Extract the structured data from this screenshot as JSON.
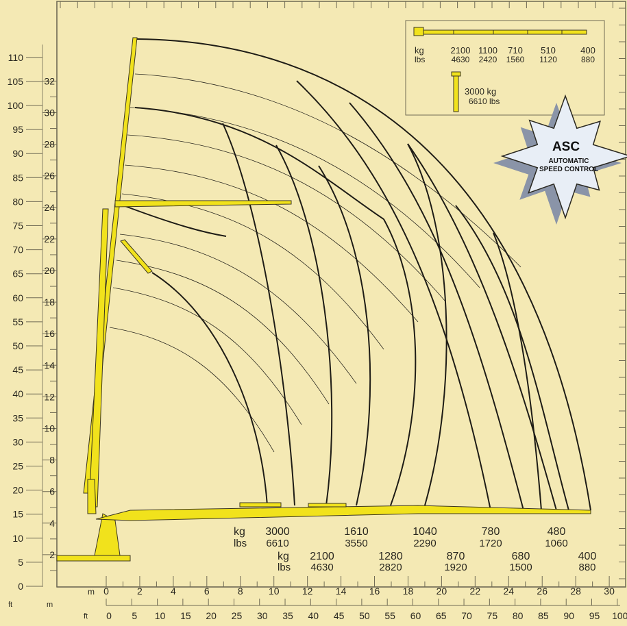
{
  "colors": {
    "background": "#f4e9b4",
    "frame": "#6f6a54",
    "curve": "#1e1c16",
    "boom": "#f1e21c",
    "boom_outline": "#3a3520",
    "badge": "#e8eef6",
    "badge_shadow": "#8a94a8",
    "text": "#2a2820"
  },
  "left_axis": {
    "ft_labels": [
      "0",
      "5",
      "10",
      "15",
      "20",
      "25",
      "30",
      "35",
      "40",
      "45",
      "50",
      "55",
      "60",
      "65",
      "70",
      "75",
      "80",
      "85",
      "90",
      "95",
      "100",
      "105",
      "110"
    ],
    "m_labels": [
      "2",
      "4",
      "6",
      "8",
      "10",
      "12",
      "14",
      "16",
      "18",
      "20",
      "22",
      "24",
      "26",
      "28",
      "30",
      "32"
    ],
    "unit_ft": "ft",
    "unit_m": "m"
  },
  "bottom_axis": {
    "m_labels": [
      "0",
      "2",
      "4",
      "6",
      "8",
      "10",
      "12",
      "14",
      "16",
      "18",
      "20",
      "22",
      "24",
      "26",
      "28",
      "30"
    ],
    "ft_labels": [
      "0",
      "5",
      "10",
      "15",
      "20",
      "25",
      "30",
      "35",
      "40",
      "45",
      "50",
      "55",
      "60",
      "65",
      "70",
      "75",
      "80",
      "85",
      "90",
      "95",
      "100"
    ],
    "unit_m": "m",
    "unit_ft": "ft"
  },
  "load_row_1": {
    "kg_label": "kg",
    "lbs_label": "lbs",
    "kg_values": [
      "3000",
      "1610",
      "1040",
      "780",
      "480"
    ],
    "lbs_values": [
      "6610",
      "3550",
      "2290",
      "1720",
      "1060"
    ]
  },
  "load_row_2": {
    "kg_label": "kg",
    "lbs_label": "lbs",
    "kg_values": [
      "2100",
      "1280",
      "870",
      "680",
      "400"
    ],
    "lbs_values": [
      "4630",
      "2820",
      "1920",
      "1500",
      "880"
    ]
  },
  "inset": {
    "kg_label": "kg",
    "lbs_label": "lbs",
    "kg_values": [
      "2100",
      "1100",
      "710",
      "510",
      "400"
    ],
    "lbs_values": [
      "4630",
      "2420",
      "1560",
      "1120",
      "880"
    ],
    "jib_kg": "3000 kg",
    "jib_lbs": "6610 lbs"
  },
  "badge": {
    "title": "ASC",
    "line1": "AUTOMATIC",
    "line2": "SPEED CONTROL",
    "icon": "starburst-badge"
  }
}
